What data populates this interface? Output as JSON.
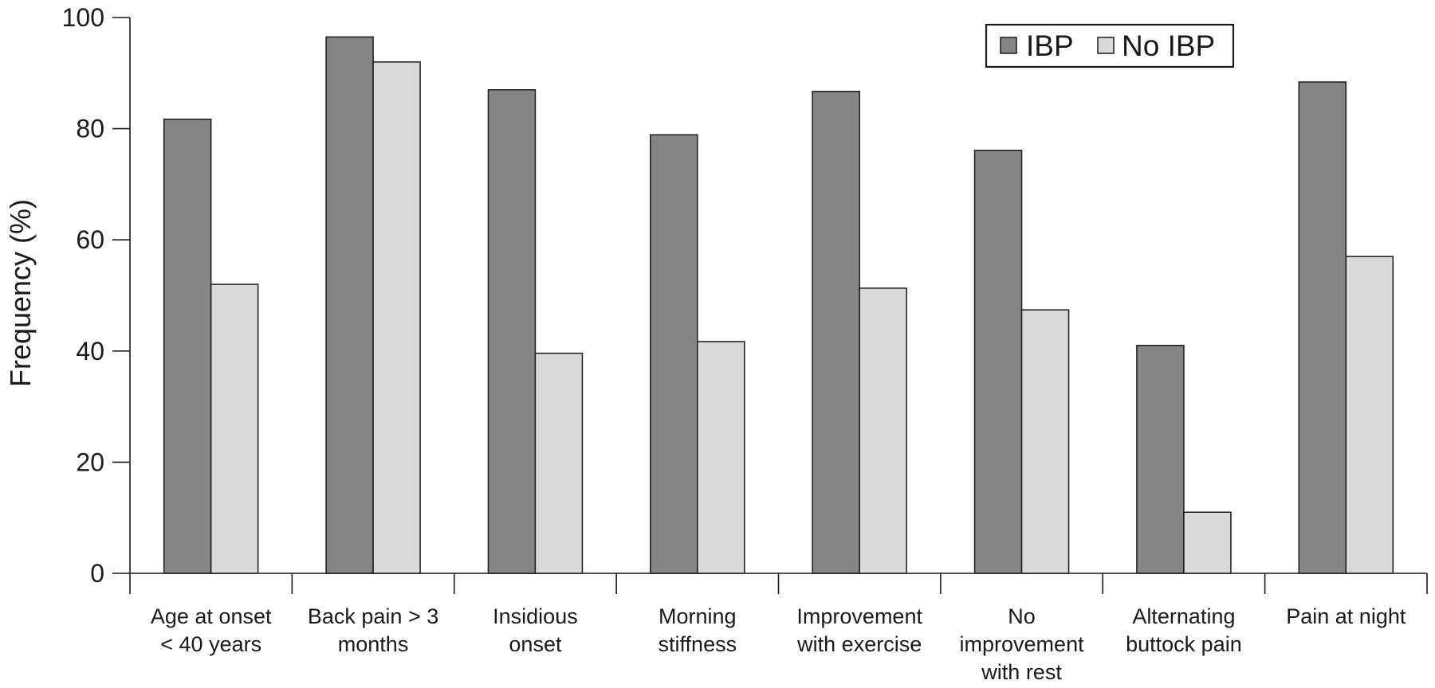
{
  "chart_data": {
    "type": "bar",
    "ylabel": "Frequency (%)",
    "ylim": [
      0,
      100
    ],
    "yticks": [
      0,
      20,
      40,
      60,
      80,
      100
    ],
    "grid": false,
    "legend_position": "top-right",
    "categories": [
      [
        "Age at onset",
        "< 40 years"
      ],
      [
        "Back pain > 3",
        "months"
      ],
      [
        "Insidious",
        "onset"
      ],
      [
        "Morning",
        "stiffness"
      ],
      [
        "Improvement",
        "with exercise"
      ],
      [
        "No",
        "improvement",
        "with rest"
      ],
      [
        "Alternating",
        "buttock pain"
      ],
      [
        "Pain at night"
      ]
    ],
    "series": [
      {
        "name": "IBP",
        "color": "#858585",
        "values": [
          81.7,
          96.5,
          87,
          78.9,
          86.7,
          76.1,
          41,
          88.4
        ]
      },
      {
        "name": "No IBP",
        "color": "#d9d9d9",
        "values": [
          52,
          92,
          39.6,
          41.7,
          51.3,
          47.4,
          11,
          57
        ]
      }
    ]
  }
}
